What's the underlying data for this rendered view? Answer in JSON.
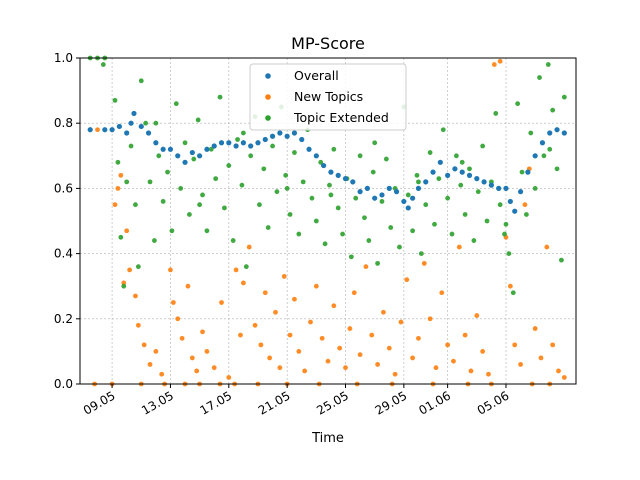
{
  "chart_data": {
    "type": "scatter",
    "title": "MP-Score",
    "xlabel": "Time",
    "ylabel": "",
    "x_ticks": [
      "09.05",
      "13.05",
      "17.05",
      "21.05",
      "25.05",
      "29.05",
      "01.06",
      "05.06"
    ],
    "x_tick_day_index": [
      0,
      4,
      8,
      12,
      16,
      20,
      23,
      27
    ],
    "xlim_days": [
      -2.2,
      31.8
    ],
    "ylim": [
      0,
      1
    ],
    "y_ticks": [
      "0.0",
      "0.2",
      "0.4",
      "0.6",
      "0.8",
      "1.0"
    ],
    "grid": true,
    "legend_position": "top-center",
    "series": [
      {
        "name": "Overall",
        "color": "#1f77b4",
        "x_days": [
          -1.5,
          -0.5,
          0,
          0.5,
          1,
          1.3,
          1.5,
          2,
          2.5,
          3,
          3.5,
          4,
          4.5,
          5,
          5.5,
          6,
          6.5,
          7,
          7.5,
          8,
          8.5,
          9,
          9.5,
          10,
          10.5,
          11,
          11.5,
          12,
          12.5,
          13,
          13.5,
          14,
          14.5,
          15,
          15.5,
          16,
          16.5,
          17,
          17.5,
          18,
          18.5,
          19,
          19.5,
          20,
          20.3,
          20.6,
          21,
          21.5,
          22,
          22.5,
          23,
          23.5,
          24,
          24.5,
          25,
          25.5,
          26,
          26.5,
          27,
          27.3,
          27.6,
          28,
          28.5,
          29,
          29.5,
          30,
          30.5,
          31
        ],
        "values": [
          0.78,
          0.78,
          0.78,
          0.79,
          0.77,
          0.8,
          0.83,
          0.79,
          0.77,
          0.74,
          0.72,
          0.72,
          0.7,
          0.68,
          0.71,
          0.7,
          0.72,
          0.73,
          0.74,
          0.74,
          0.73,
          0.74,
          0.73,
          0.74,
          0.75,
          0.76,
          0.77,
          0.76,
          0.77,
          0.75,
          0.72,
          0.7,
          0.67,
          0.65,
          0.64,
          0.63,
          0.62,
          0.59,
          0.6,
          0.57,
          0.58,
          0.6,
          0.59,
          0.56,
          0.54,
          0.57,
          0.6,
          0.62,
          0.65,
          0.68,
          0.64,
          0.66,
          0.65,
          0.64,
          0.63,
          0.62,
          0.61,
          0.6,
          0.6,
          0.56,
          0.53,
          0.59,
          0.65,
          0.7,
          0.74,
          0.77,
          0.78,
          0.77
        ]
      },
      {
        "name": "New Topics",
        "color": "#ff7f0e",
        "points": [
          [
            -1.5,
            0.78
          ],
          [
            -1.0,
            0.78
          ],
          [
            0.2,
            0.55
          ],
          [
            0.4,
            0.6
          ],
          [
            0.6,
            0.64
          ],
          [
            1.0,
            0.47
          ],
          [
            1.2,
            0.35
          ],
          [
            0.8,
            0.31
          ],
          [
            1.6,
            0.27
          ],
          [
            1.8,
            0.18
          ],
          [
            2.2,
            0.12
          ],
          [
            2.6,
            0.06
          ],
          [
            3.0,
            0.1
          ],
          [
            3.4,
            0.03
          ],
          [
            4.0,
            0.35
          ],
          [
            4.2,
            0.25
          ],
          [
            4.5,
            0.2
          ],
          [
            4.8,
            0.14
          ],
          [
            5.2,
            0.3
          ],
          [
            5.5,
            0.08
          ],
          [
            5.8,
            0.04
          ],
          [
            6.2,
            0.16
          ],
          [
            6.5,
            0.1
          ],
          [
            7.0,
            0.05
          ],
          [
            7.5,
            0.25
          ],
          [
            8.0,
            0.02
          ],
          [
            8.5,
            0.35
          ],
          [
            8.8,
            0.15
          ],
          [
            9.0,
            0.31
          ],
          [
            9.4,
            0.42
          ],
          [
            9.8,
            0.18
          ],
          [
            10.2,
            0.12
          ],
          [
            10.5,
            0.28
          ],
          [
            10.8,
            0.08
          ],
          [
            11.2,
            0.22
          ],
          [
            11.5,
            0.05
          ],
          [
            11.8,
            0.33
          ],
          [
            12.2,
            0.15
          ],
          [
            12.5,
            0.26
          ],
          [
            12.8,
            0.1
          ],
          [
            13.2,
            0.04
          ],
          [
            13.6,
            0.19
          ],
          [
            14.0,
            0.3
          ],
          [
            14.4,
            0.14
          ],
          [
            14.8,
            0.07
          ],
          [
            15.2,
            0.24
          ],
          [
            15.6,
            0.11
          ],
          [
            16.0,
            0.05
          ],
          [
            16.3,
            0.17
          ],
          [
            16.6,
            0.28
          ],
          [
            17.0,
            0.09
          ],
          [
            17.4,
            0.36
          ],
          [
            17.8,
            0.15
          ],
          [
            18.2,
            0.06
          ],
          [
            18.6,
            0.22
          ],
          [
            19.0,
            0.11
          ],
          [
            19.4,
            0.03
          ],
          [
            19.8,
            0.19
          ],
          [
            20.2,
            0.32
          ],
          [
            20.6,
            0.08
          ],
          [
            21.0,
            0.14
          ],
          [
            21.4,
            0.37
          ],
          [
            21.8,
            0.2
          ],
          [
            22.2,
            0.05
          ],
          [
            22.6,
            0.28
          ],
          [
            23.0,
            0.12
          ],
          [
            23.4,
            0.07
          ],
          [
            23.8,
            0.42
          ],
          [
            24.2,
            0.15
          ],
          [
            24.6,
            0.04
          ],
          [
            25.0,
            0.21
          ],
          [
            25.4,
            0.1
          ],
          [
            25.8,
            0.03
          ],
          [
            26.2,
            0.98
          ],
          [
            26.6,
            0.99
          ],
          [
            27.0,
            0.45
          ],
          [
            27.3,
            0.3
          ],
          [
            27.6,
            0.12
          ],
          [
            28.0,
            0.06
          ],
          [
            28.3,
            0.55
          ],
          [
            28.6,
            0.66
          ],
          [
            29.0,
            0.17
          ],
          [
            29.4,
            0.08
          ],
          [
            29.8,
            0.42
          ],
          [
            30.2,
            0.12
          ],
          [
            30.6,
            0.04
          ],
          [
            31.0,
            0.02
          ],
          [
            -1.2,
            0.0
          ],
          [
            0.0,
            0.0
          ],
          [
            2.0,
            0.0
          ],
          [
            3.6,
            0.0
          ],
          [
            5.0,
            0.0
          ],
          [
            6.0,
            0.0
          ],
          [
            7.4,
            0.0
          ],
          [
            8.4,
            0.0
          ],
          [
            10.0,
            0.0
          ],
          [
            12.0,
            0.0
          ],
          [
            14.2,
            0.0
          ],
          [
            16.8,
            0.0
          ],
          [
            19.2,
            0.0
          ],
          [
            22.0,
            0.0
          ],
          [
            24.4,
            0.0
          ],
          [
            26.0,
            0.0
          ],
          [
            28.8,
            0.0
          ],
          [
            30.0,
            0.0
          ]
        ]
      },
      {
        "name": "Topic Extended",
        "color": "#2ca02c",
        "points": [
          [
            -1.5,
            1.0
          ],
          [
            -1.0,
            1.0
          ],
          [
            -0.5,
            1.0
          ],
          [
            0.2,
            0.87
          ],
          [
            0.4,
            0.68
          ],
          [
            0.6,
            0.45
          ],
          [
            0.8,
            0.3
          ],
          [
            1.0,
            0.62
          ],
          [
            1.3,
            0.73
          ],
          [
            1.6,
            0.55
          ],
          [
            2.0,
            0.93
          ],
          [
            2.3,
            0.8
          ],
          [
            2.6,
            0.62
          ],
          [
            2.9,
            0.44
          ],
          [
            3.2,
            0.7
          ],
          [
            3.5,
            0.56
          ],
          [
            3.8,
            0.65
          ],
          [
            4.1,
            0.47
          ],
          [
            4.4,
            0.86
          ],
          [
            4.7,
            0.6
          ],
          [
            5.0,
            0.74
          ],
          [
            5.3,
            0.52
          ],
          [
            5.6,
            0.69
          ],
          [
            5.9,
            0.81
          ],
          [
            6.2,
            0.58
          ],
          [
            6.5,
            0.47
          ],
          [
            6.8,
            0.72
          ],
          [
            7.1,
            0.63
          ],
          [
            7.4,
            0.88
          ],
          [
            7.7,
            0.54
          ],
          [
            8.0,
            0.67
          ],
          [
            8.3,
            0.44
          ],
          [
            8.6,
            0.75
          ],
          [
            8.9,
            0.61
          ],
          [
            9.2,
            0.36
          ],
          [
            9.5,
            0.7
          ],
          [
            9.8,
            0.82
          ],
          [
            10.1,
            0.55
          ],
          [
            10.4,
            0.66
          ],
          [
            10.7,
            0.48
          ],
          [
            11.0,
            0.73
          ],
          [
            11.3,
            0.59
          ],
          [
            11.6,
            0.85
          ],
          [
            11.9,
            0.64
          ],
          [
            12.2,
            0.52
          ],
          [
            12.5,
            0.71
          ],
          [
            12.8,
            0.46
          ],
          [
            13.1,
            0.62
          ],
          [
            13.4,
            0.78
          ],
          [
            13.7,
            0.57
          ],
          [
            14.0,
            0.5
          ],
          [
            14.3,
            0.68
          ],
          [
            14.6,
            0.43
          ],
          [
            14.9,
            0.61
          ],
          [
            15.2,
            0.72
          ],
          [
            15.5,
            0.54
          ],
          [
            15.8,
            0.46
          ],
          [
            16.1,
            0.63
          ],
          [
            16.4,
            0.39
          ],
          [
            16.7,
            0.57
          ],
          [
            17.0,
            0.7
          ],
          [
            17.3,
            0.51
          ],
          [
            17.6,
            0.44
          ],
          [
            17.9,
            0.65
          ],
          [
            18.2,
            0.37
          ],
          [
            18.5,
            0.56
          ],
          [
            18.8,
            0.69
          ],
          [
            19.1,
            0.48
          ],
          [
            19.4,
            0.6
          ],
          [
            19.7,
            0.42
          ],
          [
            20.0,
            0.85
          ],
          [
            20.3,
            0.58
          ],
          [
            20.6,
            0.47
          ],
          [
            20.9,
            0.64
          ],
          [
            21.2,
            0.4
          ],
          [
            21.5,
            0.55
          ],
          [
            21.8,
            0.71
          ],
          [
            22.1,
            0.49
          ],
          [
            22.4,
            0.63
          ],
          [
            22.7,
            0.78
          ],
          [
            23.0,
            0.57
          ],
          [
            23.3,
            0.46
          ],
          [
            23.6,
            0.7
          ],
          [
            23.9,
            0.61
          ],
          [
            24.2,
            0.52
          ],
          [
            24.5,
            0.66
          ],
          [
            24.8,
            0.44
          ],
          [
            25.1,
            0.59
          ],
          [
            25.4,
            0.73
          ],
          [
            25.7,
            0.5
          ],
          [
            26.0,
            0.62
          ],
          [
            26.3,
            0.83
          ],
          [
            26.6,
            0.55
          ],
          [
            26.9,
            0.46
          ],
          [
            27.2,
            0.4
          ],
          [
            27.5,
            0.28
          ],
          [
            27.8,
            0.86
          ],
          [
            28.1,
            0.65
          ],
          [
            28.4,
            0.52
          ],
          [
            28.7,
            0.77
          ],
          [
            29.0,
            0.6
          ],
          [
            29.3,
            0.94
          ],
          [
            29.6,
            0.7
          ],
          [
            29.9,
            0.98
          ],
          [
            30.2,
            0.84
          ],
          [
            30.5,
            0.66
          ],
          [
            30.8,
            0.38
          ],
          [
            31.0,
            0.88
          ],
          [
            -0.6,
            0.98
          ],
          [
            1.8,
            0.36
          ],
          [
            3.0,
            0.8
          ],
          [
            6.0,
            0.55
          ],
          [
            9.0,
            0.77
          ],
          [
            12.0,
            0.6
          ],
          [
            15.0,
            0.58
          ],
          [
            18.0,
            0.74
          ],
          [
            21.0,
            0.62
          ],
          [
            24.0,
            0.68
          ],
          [
            27.0,
            0.49
          ],
          [
            30.0,
            0.72
          ]
        ]
      }
    ]
  }
}
